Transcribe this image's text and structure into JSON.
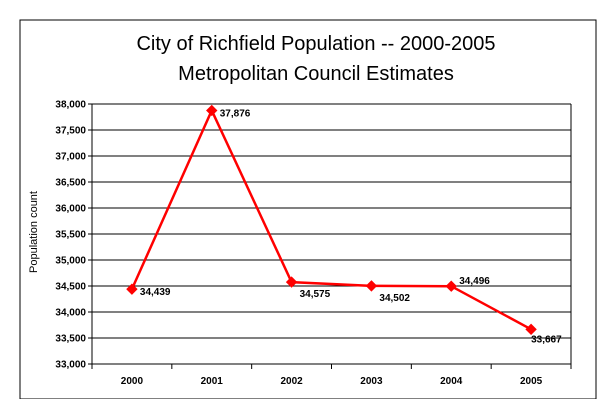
{
  "chart_data": {
    "type": "line",
    "title": "City of Richfield Population -- 2000-2005",
    "subtitle": "Metropolitan Council Estimates",
    "xlabel": "",
    "ylabel": "Population count",
    "categories": [
      "2000",
      "2001",
      "2002",
      "2003",
      "2004",
      "2005"
    ],
    "series": [
      {
        "values": [
          34439,
          37876,
          34575,
          34502,
          34496,
          33667
        ],
        "data_labels": [
          "34,439",
          "37,876",
          "34,575",
          "34,502",
          "34,496",
          "33,667"
        ],
        "color": "#ff0000",
        "marker": "diamond"
      }
    ],
    "ylim": [
      33000,
      38000
    ],
    "y_ticks": [
      33000,
      33500,
      34000,
      34500,
      35000,
      35500,
      36000,
      36500,
      37000,
      37500,
      38000
    ],
    "y_tick_labels": [
      "33,000",
      "33,500",
      "34,000",
      "34,500",
      "35,000",
      "35,500",
      "36,000",
      "36,500",
      "37,000",
      "37,500",
      "38,000"
    ],
    "grid": true,
    "legend": false
  }
}
